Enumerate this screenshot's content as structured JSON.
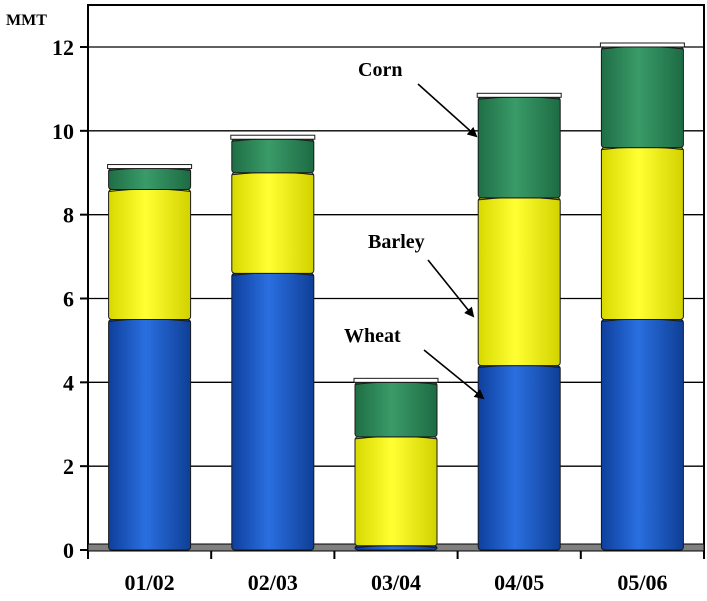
{
  "chart_data": {
    "type": "bar",
    "stacked": true,
    "y_unit_label": "MMT",
    "categories": [
      "01/02",
      "02/03",
      "03/04",
      "04/05",
      "05/06"
    ],
    "series": [
      {
        "name": "Wheat",
        "values": [
          5.5,
          6.6,
          0.1,
          4.4,
          5.5
        ]
      },
      {
        "name": "Barley",
        "values": [
          3.1,
          2.4,
          2.6,
          4.0,
          4.1
        ]
      },
      {
        "name": "Corn",
        "values": [
          0.5,
          0.8,
          1.3,
          2.4,
          2.4
        ]
      }
    ],
    "ylim": [
      0,
      12
    ],
    "yticks": [
      0,
      2,
      4,
      6,
      8,
      10,
      12
    ],
    "grid": true,
    "legend": "annotations with arrows",
    "colors": {
      "Wheat": "#1f5fc8",
      "Barley": "#f5f50a",
      "Corn": "#2e8b57",
      "floor": "#808080"
    }
  }
}
